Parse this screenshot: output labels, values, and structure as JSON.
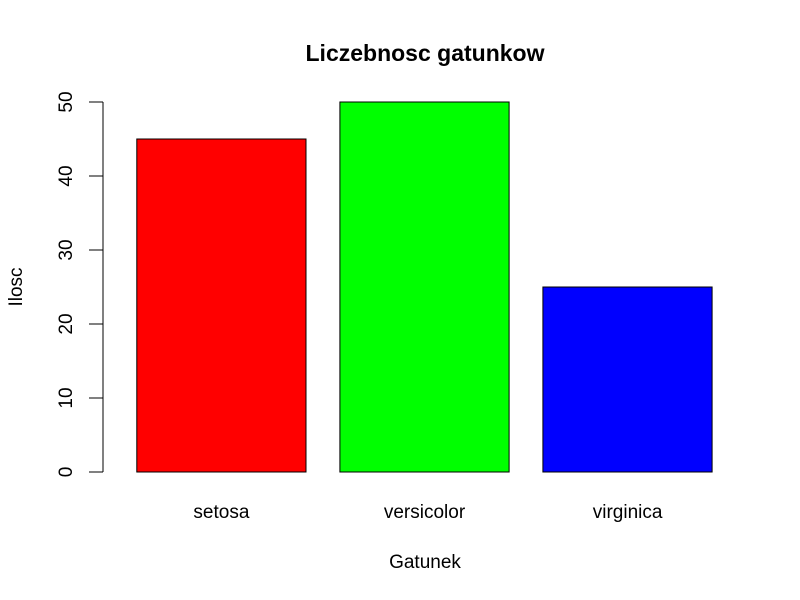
{
  "chart_data": {
    "type": "bar",
    "title": "Liczebnosc gatunkow",
    "xlabel": "Gatunek",
    "ylabel": "Ilosc",
    "categories": [
      "setosa",
      "versicolor",
      "virginica"
    ],
    "values": [
      45,
      50,
      25
    ],
    "colors": [
      "#ff0000",
      "#00ff00",
      "#0000ff"
    ],
    "ylim": [
      0,
      50
    ],
    "yticks": [
      0,
      10,
      20,
      30,
      40,
      50
    ],
    "grid": false,
    "legend": "none"
  }
}
